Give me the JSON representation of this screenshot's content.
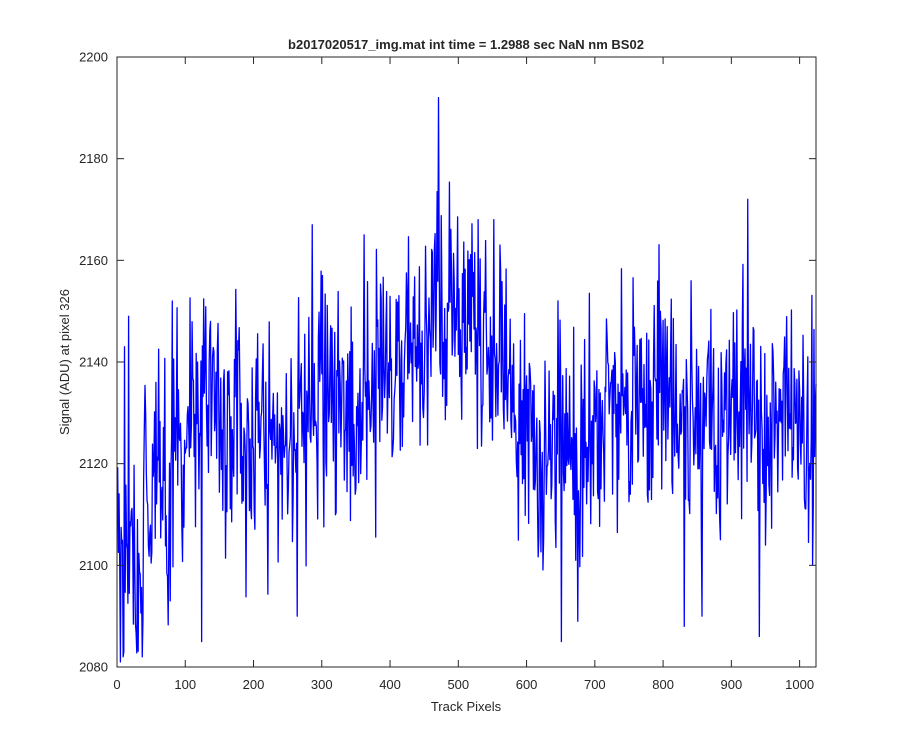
{
  "chart_data": {
    "type": "line",
    "title": "b2017020517_img.mat int time = 1.2988 sec  NaN nm BS02",
    "xlabel": "Track Pixels",
    "ylabel": "Signal (ADU) at pixel 326",
    "xlim": [
      0,
      1024
    ],
    "ylim": [
      2080,
      2200
    ],
    "xticks": [
      0,
      100,
      200,
      300,
      400,
      500,
      600,
      700,
      800,
      900,
      1000
    ],
    "yticks": [
      2080,
      2100,
      2120,
      2140,
      2160,
      2180,
      2200
    ],
    "grid": false,
    "legend": "none",
    "series_color": "#0000ff",
    "series": [
      {
        "x_start": 1,
        "x_step": 8,
        "values": [
          2118,
          2100,
          2104,
          2098,
          2096,
          2120,
          2108,
          2122,
          2128,
          2112,
          2118,
          2124,
          2116,
          2132,
          2126,
          2128,
          2140,
          2132,
          2130,
          2136,
          2128,
          2132,
          2134,
          2126,
          2120,
          2126,
          2128,
          2128,
          2130,
          2126,
          2124,
          2130,
          2124,
          2134,
          2132,
          2128,
          2124,
          2140,
          2134,
          2132,
          2128,
          2138,
          2130,
          2128,
          2118,
          2132,
          2134,
          2128,
          2136,
          2142,
          2136,
          2134,
          2132,
          2140,
          2138,
          2144,
          2140,
          2148,
          2158,
          2144,
          2140,
          2150,
          2146,
          2142,
          2152,
          2148,
          2146,
          2144,
          2136,
          2140,
          2150,
          2140,
          2134,
          2128,
          2124,
          2130,
          2136,
          2120,
          2118,
          2126,
          2124,
          2130,
          2122,
          2126,
          2120,
          2128,
          2132,
          2128,
          2126,
          2130,
          2134,
          2128,
          2132,
          2130,
          2126,
          2136,
          2130,
          2124,
          2130,
          2132,
          2138,
          2140,
          2136,
          2130,
          2132,
          2128,
          2132,
          2130,
          2134,
          2128,
          2126,
          2130,
          2128,
          2132,
          2128,
          2138,
          2130,
          2126,
          2132,
          2124,
          2126,
          2130,
          2128
        ]
      }
    ],
    "annotations": {
      "extremes": [
        {
          "x": 5,
          "y": 2081
        },
        {
          "x": 11,
          "y": 2143
        },
        {
          "x": 17,
          "y": 2149
        },
        {
          "x": 37,
          "y": 2082
        },
        {
          "x": 81,
          "y": 2152
        },
        {
          "x": 124,
          "y": 2085
        },
        {
          "x": 264,
          "y": 2090
        },
        {
          "x": 286,
          "y": 2167
        },
        {
          "x": 362,
          "y": 2165
        },
        {
          "x": 471,
          "y": 2192
        },
        {
          "x": 529,
          "y": 2168
        },
        {
          "x": 552,
          "y": 2168
        },
        {
          "x": 651,
          "y": 2085
        },
        {
          "x": 675,
          "y": 2089
        },
        {
          "x": 831,
          "y": 2088
        },
        {
          "x": 857,
          "y": 2090
        },
        {
          "x": 924,
          "y": 2172
        },
        {
          "x": 941,
          "y": 2086
        },
        {
          "x": 1019,
          "y": 2100
        }
      ]
    }
  }
}
